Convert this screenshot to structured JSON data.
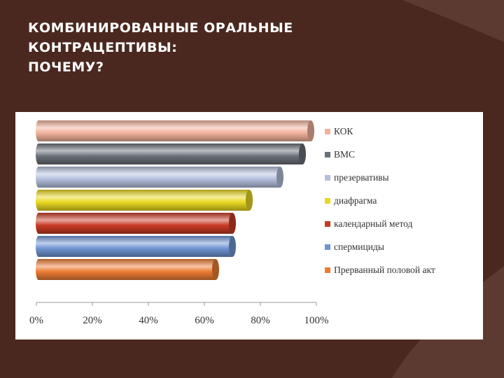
{
  "title_lines": [
    "КОМБИНИРОВАННЫЕ ОРАЛЬНЫЕ",
    "КОНТРАЦЕПТИВЫ:",
    "ПОЧЕМУ?"
  ],
  "background_colors": {
    "base": "#4a2820",
    "accent": "#5c3a32",
    "panel": "#ffffff"
  },
  "chart_data": {
    "type": "bar",
    "orientation": "horizontal",
    "categories": [
      "КОК",
      "ВМС",
      "презервативы",
      "диафрагма",
      "календарный метод",
      "спермициды",
      "Прерванный половой акт"
    ],
    "values": [
      98,
      95,
      87,
      76,
      70,
      70,
      64
    ],
    "colors": [
      "#f2b29c",
      "#6a7078",
      "#b4c0dc",
      "#e8d820",
      "#c83a24",
      "#6e94d2",
      "#ec7c34"
    ],
    "xlim": [
      0,
      100
    ],
    "xticks": [
      0,
      20,
      40,
      60,
      80,
      100
    ],
    "xtick_labels": [
      "0%",
      "20%",
      "40%",
      "60%",
      "80%",
      "100%"
    ],
    "legend_position": "right",
    "grid": false
  }
}
